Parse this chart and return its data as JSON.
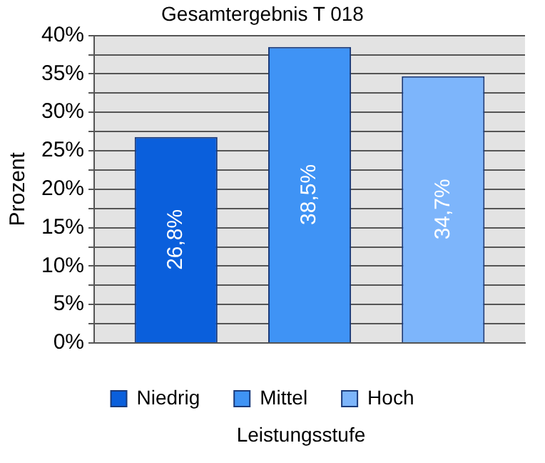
{
  "chart_data": {
    "type": "bar",
    "title": "Gesamtergebnis T 018",
    "xlabel": "Leistungsstufe",
    "ylabel": "Prozent",
    "categories": [
      null
    ],
    "series": [
      {
        "name": "Niedrig",
        "color": "#0a5fdc",
        "values": [
          26.8
        ],
        "value_labels": [
          "26,8%"
        ]
      },
      {
        "name": "Mittel",
        "color": "#3f93f5",
        "values": [
          38.5
        ],
        "value_labels": [
          "38,5%"
        ]
      },
      {
        "name": "Hoch",
        "color": "#7db5fb",
        "values": [
          34.7
        ],
        "value_labels": [
          "34,7%"
        ]
      }
    ],
    "ylim": [
      0,
      40
    ],
    "yticks": [
      {
        "value": 0,
        "label": "0%"
      },
      {
        "value": 2.5,
        "label": null
      },
      {
        "value": 5,
        "label": "5%"
      },
      {
        "value": 7.5,
        "label": null
      },
      {
        "value": 10,
        "label": "10%"
      },
      {
        "value": 12.5,
        "label": null
      },
      {
        "value": 15,
        "label": "15%"
      },
      {
        "value": 17.5,
        "label": null
      },
      {
        "value": 20,
        "label": "20%"
      },
      {
        "value": 22.5,
        "label": null
      },
      {
        "value": 25,
        "label": "25%"
      },
      {
        "value": 27.5,
        "label": null
      },
      {
        "value": 30,
        "label": "30%"
      },
      {
        "value": 32.5,
        "label": null
      },
      {
        "value": 35,
        "label": "35%"
      },
      {
        "value": 37.5,
        "label": null
      },
      {
        "value": 40,
        "label": "40%"
      }
    ],
    "grid": "y",
    "legend": "bottom"
  }
}
